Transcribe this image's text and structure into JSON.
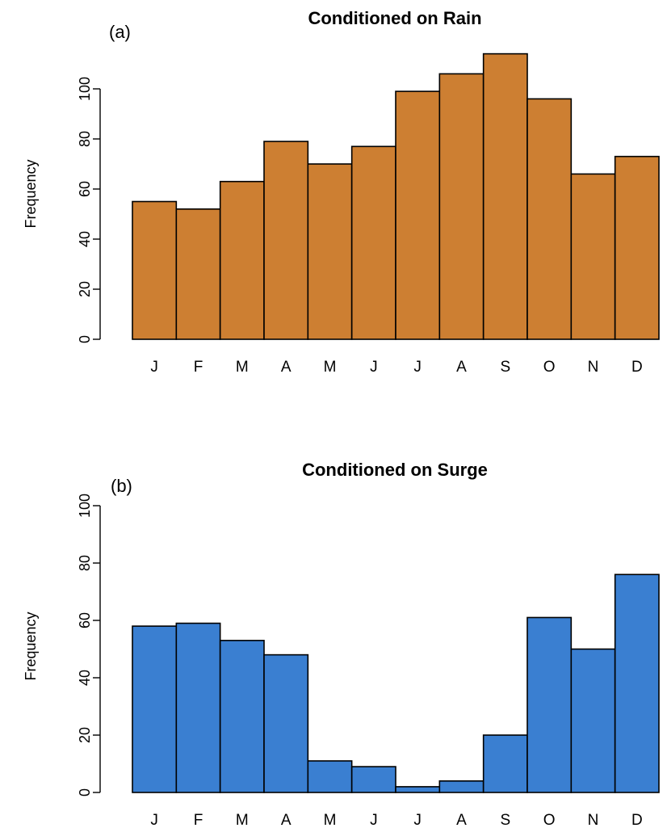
{
  "chart_data": [
    {
      "type": "bar",
      "panel_label": "(a)",
      "title": "Conditioned on Rain",
      "ylabel": "Frequency",
      "xlabel": "",
      "categories": [
        "J",
        "F",
        "M",
        "A",
        "M",
        "J",
        "J",
        "A",
        "S",
        "O",
        "N",
        "D"
      ],
      "values": [
        55,
        52,
        63,
        79,
        70,
        77,
        99,
        106,
        114,
        96,
        66,
        73
      ],
      "ylim": [
        0,
        115
      ],
      "yticks": [
        0,
        20,
        40,
        60,
        80,
        100
      ],
      "bar_color": "#cd7f32",
      "grid": false
    },
    {
      "type": "bar",
      "panel_label": "(b)",
      "title": "Conditioned on Surge",
      "ylabel": "Frequency",
      "xlabel": "",
      "categories": [
        "J",
        "F",
        "M",
        "A",
        "M",
        "J",
        "J",
        "A",
        "S",
        "O",
        "N",
        "D"
      ],
      "values": [
        58,
        59,
        53,
        48,
        11,
        9,
        2,
        4,
        20,
        61,
        50,
        76
      ],
      "ylim": [
        0,
        100
      ],
      "yticks": [
        0,
        20,
        40,
        60,
        80,
        100
      ],
      "bar_color": "#3a7fd1",
      "grid": false
    }
  ]
}
